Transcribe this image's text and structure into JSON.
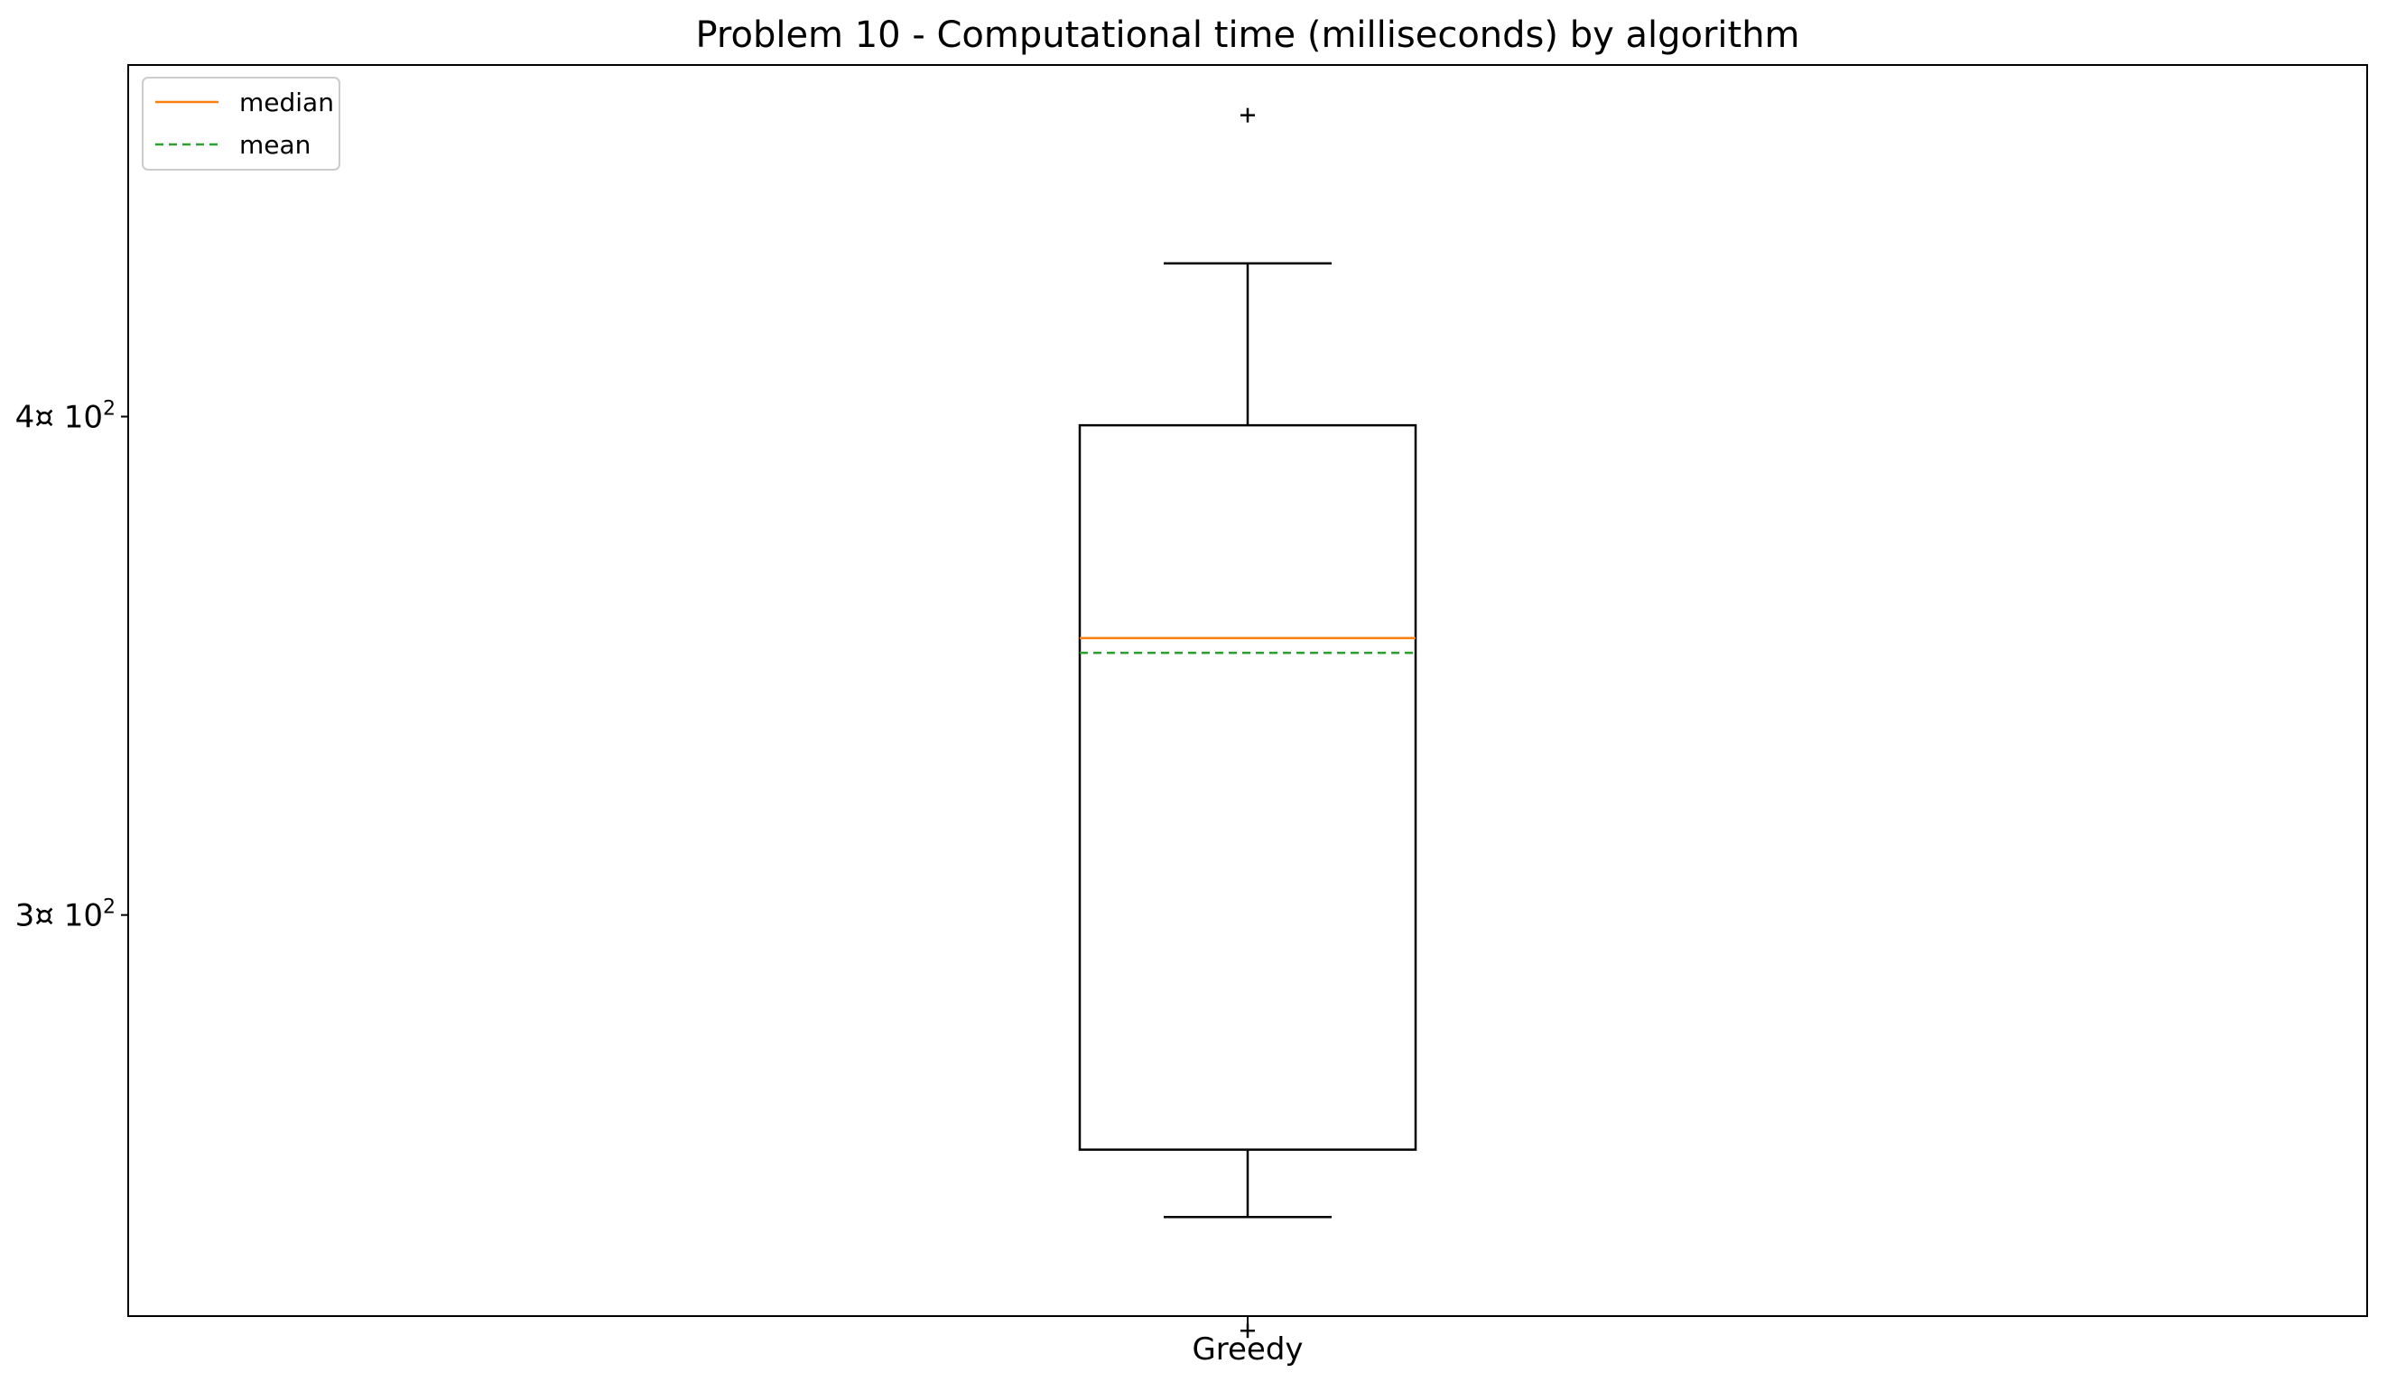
{
  "chart_data": {
    "type": "box",
    "title": "Problem 10 - Computational time (milliseconds) by algorithm",
    "xlabel": "",
    "ylabel": "",
    "yscale": "log",
    "ylim": [
      238,
      490
    ],
    "categories": [
      "Greedy"
    ],
    "yticks": [
      {
        "value": 300,
        "base": "3¤ 10",
        "exp": "2"
      },
      {
        "value": 400,
        "base": "4¤ 10",
        "exp": "2"
      }
    ],
    "boxes": [
      {
        "name": "Greedy",
        "whisker_low": 252,
        "q1": 262,
        "median": 352,
        "mean": 349,
        "q3": 398,
        "whisker_high": 437,
        "fliers": [
          236,
          476
        ]
      }
    ],
    "legend": {
      "position": "upper-left",
      "entries": [
        {
          "label": "median",
          "color": "#ff7f0e",
          "style": "solid"
        },
        {
          "label": "mean",
          "color": "#2ca02c",
          "style": "dashed"
        }
      ]
    },
    "grid": false
  }
}
